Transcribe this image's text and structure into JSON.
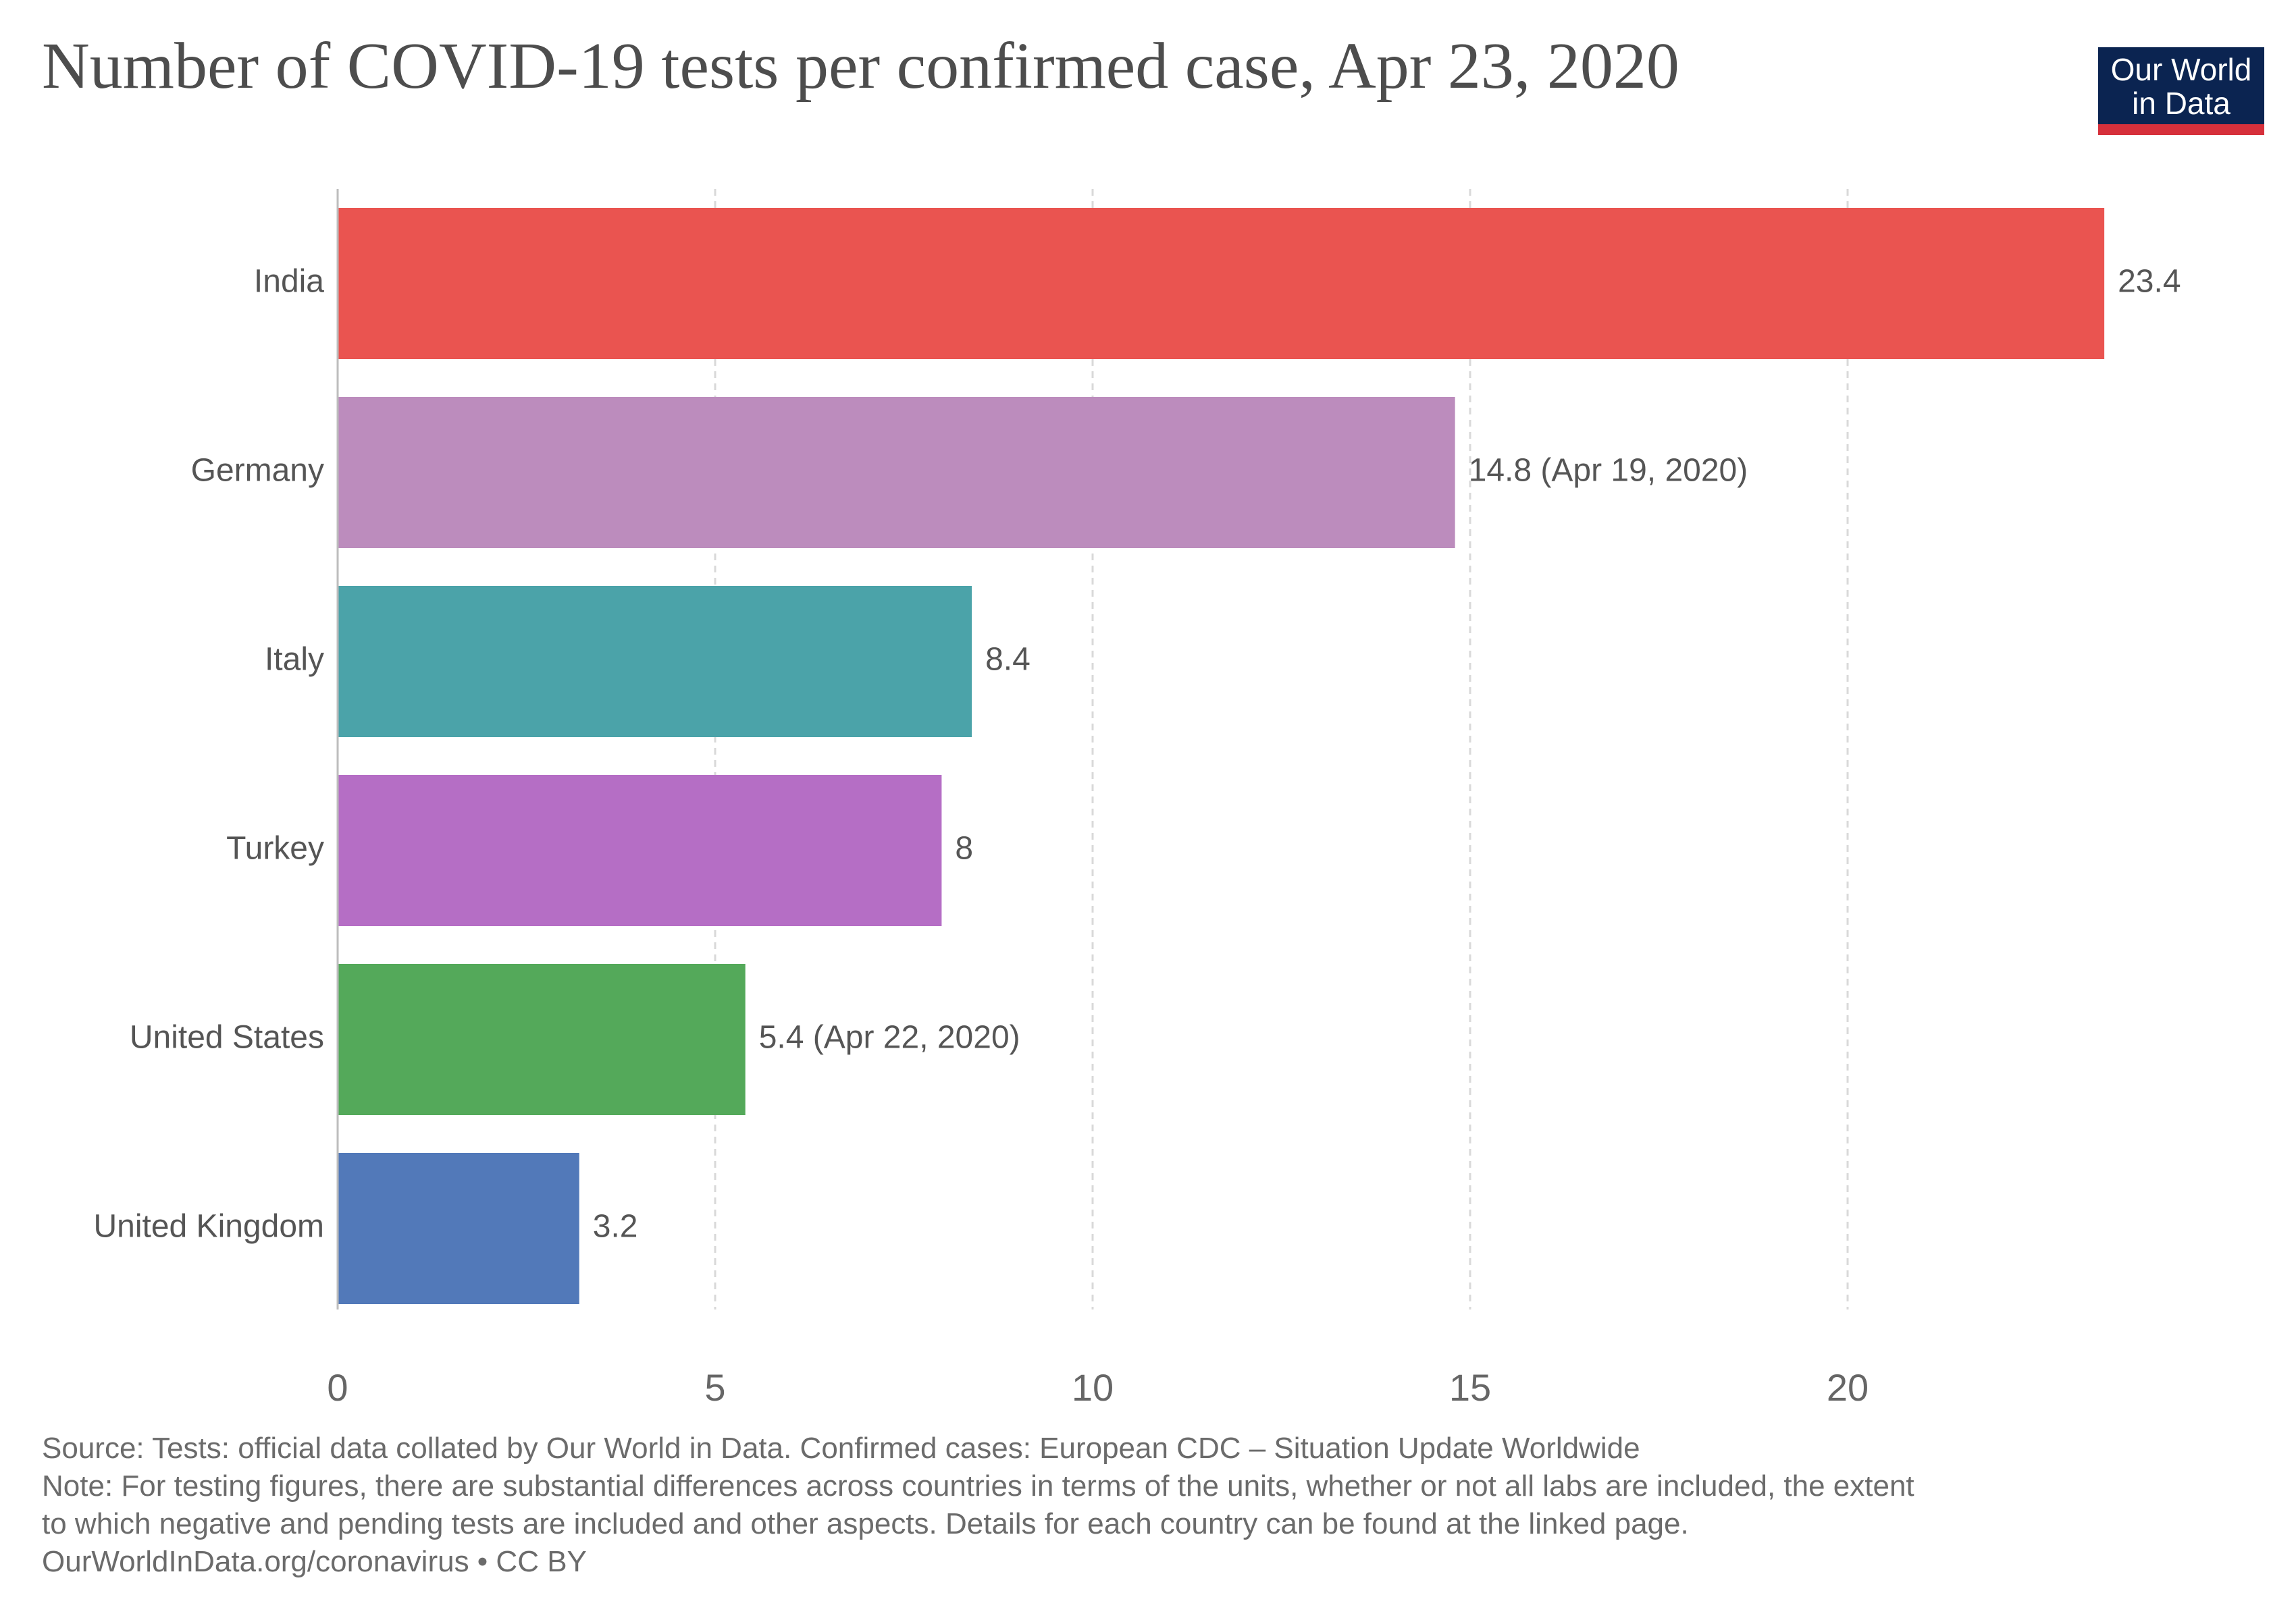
{
  "header": {
    "title": "Number of COVID-19 tests per confirmed case, Apr 23, 2020"
  },
  "logo": {
    "line1": "Our World",
    "line2": "in Data"
  },
  "chart_data": {
    "type": "bar",
    "orientation": "horizontal",
    "title": "Number of COVID-19 tests per confirmed case, Apr 23, 2020",
    "xlabel": "",
    "ylabel": "",
    "xlim": [
      0,
      25
    ],
    "x_ticks": [
      0,
      5,
      10,
      15,
      20
    ],
    "grid": true,
    "legend": "none",
    "categories": [
      "India",
      "Germany",
      "Italy",
      "Turkey",
      "United States",
      "United Kingdom"
    ],
    "values": [
      23.4,
      14.8,
      8.4,
      8,
      5.4,
      3.2
    ],
    "value_labels": [
      "23.4",
      "14.8 (Apr 19, 2020)",
      "8.4",
      "8",
      "5.4 (Apr 22, 2020)",
      "3.2"
    ],
    "colors": [
      "#ea5450",
      "#bc8cbd",
      "#4ba3a9",
      "#b56ec5",
      "#54a95a",
      "#5279b9"
    ]
  },
  "footer": {
    "source": "Source: Tests: official data collated by Our World in Data. Confirmed cases: European CDC – Situation Update Worldwide",
    "note_line1": "Note: For testing figures, there are substantial differences across countries in terms of the units, whether or not all labs are included, the extent",
    "note_line2": "to which negative and pending tests are included and other aspects. Details for each country can be found at the linked page.",
    "credit": "OurWorldInData.org/coronavirus • CC BY"
  }
}
